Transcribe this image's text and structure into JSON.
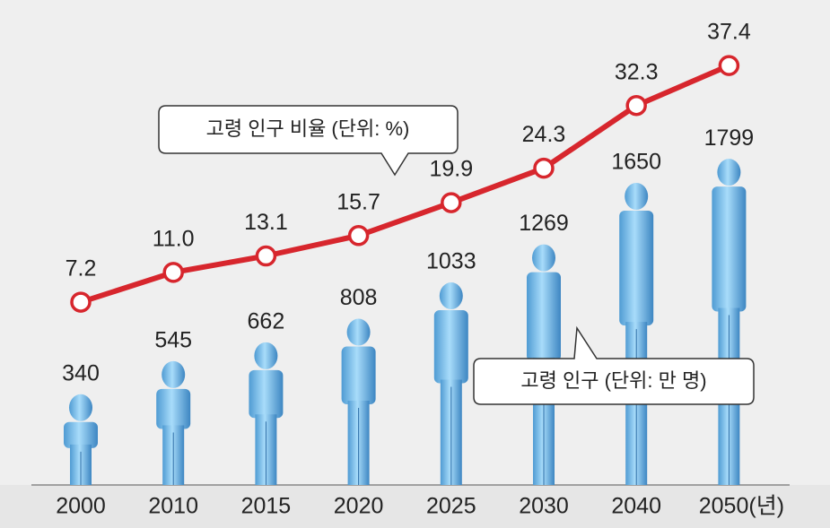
{
  "chart_data": {
    "type": "combo",
    "categories": [
      "2000",
      "2010",
      "2015",
      "2020",
      "2025",
      "2030",
      "2040",
      "2050(년)"
    ],
    "series": [
      {
        "name": "고령 인구 (단위: 만 명)",
        "type": "pictogram",
        "color": "#8cc8f0",
        "values": [
          340,
          545,
          662,
          808,
          1033,
          1269,
          1650,
          1799
        ]
      },
      {
        "name": "고령 인구 비율 (단위: %)",
        "type": "line",
        "color": "#d7262d",
        "values": [
          7.2,
          11.0,
          13.1,
          15.7,
          19.9,
          24.3,
          32.3,
          37.4
        ],
        "value_labels": [
          "7.2",
          "11.0",
          "13.1",
          "15.7",
          "19.9",
          "24.3",
          "32.3",
          "37.4"
        ]
      }
    ]
  }
}
